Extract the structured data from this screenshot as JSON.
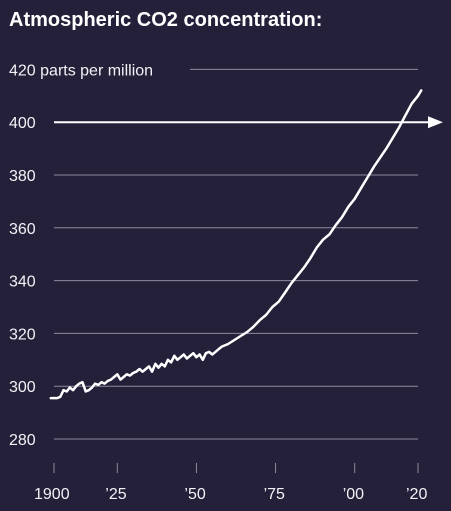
{
  "colors": {
    "background": "#24203a",
    "grid": "#8d8a9e",
    "text": "#f2f2f6",
    "line": "#ffffff"
  },
  "chart_data": {
    "type": "line",
    "title": "Atmospheric CO2 concentration:",
    "y_unit_label": "parts per million",
    "ylim": [
      270,
      420
    ],
    "xlim": [
      1900,
      2023
    ],
    "y_ticks": [
      {
        "value": 420,
        "label": "420"
      },
      {
        "value": 400,
        "label": "400"
      },
      {
        "value": 380,
        "label": "380"
      },
      {
        "value": 360,
        "label": "360"
      },
      {
        "value": 340,
        "label": "340"
      },
      {
        "value": 320,
        "label": "320"
      },
      {
        "value": 300,
        "label": "300"
      },
      {
        "value": 280,
        "label": "280"
      }
    ],
    "x_ticks": [
      {
        "value": 1900,
        "label": "1900"
      },
      {
        "value": 1925,
        "label": "’25"
      },
      {
        "value": 1950,
        "label": "’50"
      },
      {
        "value": 1975,
        "label": "’75"
      },
      {
        "value": 2000,
        "label": "’00"
      },
      {
        "value": 2020,
        "label": "’20"
      }
    ],
    "reference_line": {
      "value": 400,
      "arrow": true
    },
    "grid": true,
    "series": [
      {
        "x": [
          1904,
          1906,
          1907,
          1908,
          1909,
          1910,
          1911,
          1912,
          1913,
          1914,
          1915,
          1916,
          1917,
          1918,
          1919,
          1920,
          1921,
          1922,
          1923,
          1924,
          1925,
          1926,
          1927,
          1928,
          1929,
          1930,
          1931,
          1932,
          1933,
          1934,
          1935,
          1936,
          1937,
          1938,
          1939,
          1940,
          1941,
          1942,
          1943,
          1944,
          1945,
          1946,
          1947,
          1948,
          1949,
          1950,
          1951,
          1952,
          1953,
          1954,
          1955,
          1956,
          1957,
          1958,
          1960,
          1962,
          1964,
          1966,
          1968,
          1970,
          1972,
          1974,
          1976,
          1978,
          1980,
          1982,
          1984,
          1986,
          1988,
          1990,
          1992,
          1994,
          1996,
          1998,
          2000,
          2002,
          2004,
          2006,
          2008,
          2010,
          2012,
          2014,
          2016,
          2018,
          2019,
          2020,
          2021
        ],
        "y": [
          295.5,
          295.5,
          296.0,
          298.5,
          298.0,
          299.5,
          298.5,
          300.0,
          301.0,
          301.5,
          298.0,
          298.5,
          299.5,
          301.0,
          300.5,
          301.5,
          301.0,
          302.0,
          302.5,
          303.5,
          304.5,
          302.5,
          303.5,
          304.5,
          304.0,
          305.0,
          305.5,
          306.5,
          305.5,
          306.5,
          307.5,
          305.5,
          308.5,
          307.0,
          308.5,
          307.5,
          310.0,
          309.0,
          311.5,
          310.0,
          311.0,
          312.0,
          310.5,
          311.5,
          312.5,
          311.0,
          312.0,
          310.0,
          312.5,
          313.0,
          312.0,
          313.0,
          314.0,
          315.0,
          316.0,
          317.5,
          319.0,
          320.5,
          322.5,
          325.0,
          327.0,
          330.0,
          332.0,
          335.5,
          339.0,
          342.0,
          345.0,
          348.5,
          352.5,
          355.5,
          357.5,
          361.0,
          364.0,
          368.0,
          371.0,
          375.0,
          379.0,
          383.0,
          386.5,
          390.0,
          394.0,
          398.0,
          402.5,
          407.0,
          408.5,
          410.0,
          412.0
        ]
      }
    ]
  }
}
